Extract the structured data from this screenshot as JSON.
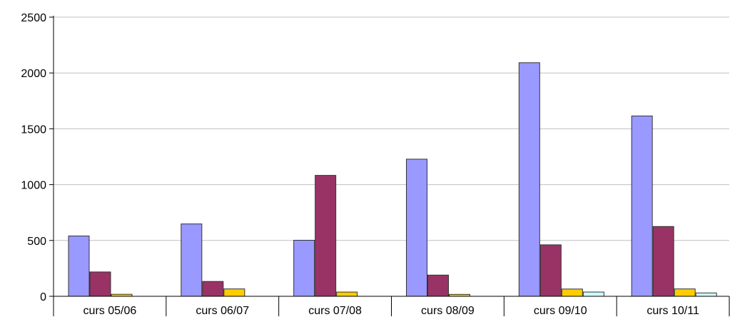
{
  "chart_data": {
    "type": "bar",
    "categories": [
      "curs 05/06",
      "curs 06/07",
      "curs 07/08",
      "curs 08/09",
      "curs 09/10",
      "curs 10/11"
    ],
    "series": [
      {
        "values": [
          540,
          648,
          502,
          1228,
          2092,
          1615
        ],
        "color": "#9999ff"
      },
      {
        "values": [
          218,
          133,
          1083,
          190,
          461,
          625
        ],
        "color": "#993366"
      },
      {
        "values": [
          18,
          66,
          38,
          17,
          65,
          66
        ],
        "color": "#ffcc00"
      },
      {
        "values": [
          0,
          0,
          0,
          0,
          38,
          30
        ],
        "color": "#ccffff"
      }
    ],
    "yticks": [
      0,
      500,
      1000,
      1500,
      2000,
      2500
    ],
    "ylim": [
      0,
      2500
    ],
    "grid": true,
    "legend": "none"
  }
}
